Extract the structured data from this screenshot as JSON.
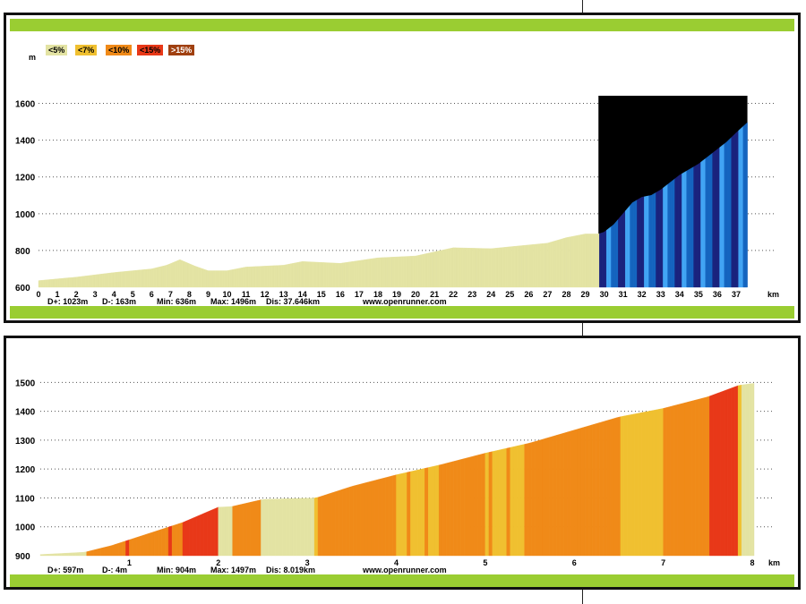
{
  "chart_data": [
    {
      "type": "area",
      "y_unit": "m",
      "x_unit": "km",
      "ylim": [
        600,
        1700
      ],
      "xlim": [
        0,
        38
      ],
      "y_ticks": [
        600,
        800,
        1000,
        1200,
        1400,
        1600
      ],
      "x_ticks": [
        "0",
        "1",
        "2",
        "3",
        "4",
        "5",
        "6",
        "7",
        "8",
        "9",
        "10",
        "11",
        "12",
        "13",
        "14",
        "15",
        "16",
        "17",
        "18",
        "19",
        "20",
        "21",
        "22",
        "23",
        "24",
        "25",
        "26",
        "27",
        "28",
        "29",
        "30",
        "31",
        "32",
        "33",
        "34",
        "35",
        "36",
        "37"
      ],
      "profile_km": [
        0,
        2,
        4,
        6,
        6.8,
        7.5,
        8.3,
        9,
        10,
        11,
        12,
        13,
        14,
        16,
        18,
        20,
        22,
        24,
        26,
        27,
        28,
        29,
        29.7,
        30,
        30.5,
        31,
        31.5,
        32,
        32.5,
        33,
        33.5,
        34,
        34.5,
        35,
        35.5,
        36,
        36.5,
        37,
        37.6
      ],
      "profile_m": [
        636,
        655,
        680,
        700,
        720,
        750,
        715,
        690,
        690,
        710,
        715,
        720,
        740,
        730,
        760,
        770,
        815,
        810,
        830,
        840,
        870,
        890,
        890,
        900,
        940,
        1000,
        1060,
        1090,
        1100,
        1130,
        1170,
        1210,
        1240,
        1270,
        1310,
        1350,
        1390,
        1440,
        1496
      ],
      "legend": [
        "<5%",
        "<7%",
        "<10%",
        "<15%",
        ">15%"
      ],
      "legend_colors": [
        "#e3e3a3",
        "#f0c030",
        "#f08a18",
        "#e83818",
        "#a04010"
      ],
      "highlight_range_km": [
        29.7,
        37.6
      ],
      "highlight_colors": [
        "#1a237e",
        "#1565c0",
        "#42a5f5"
      ],
      "stats": {
        "d_plus": "D+: 1023m",
        "d_minus": "D-: 163m",
        "min": "Min: 636m",
        "max": "Max: 1496m",
        "dist": "Dis: 37.646km"
      },
      "site": "www.openrunner.com"
    },
    {
      "type": "area",
      "y_unit": "",
      "x_unit": "km",
      "ylim": [
        900,
        1560
      ],
      "xlim": [
        0,
        8.05
      ],
      "y_ticks": [
        900,
        1000,
        1100,
        1200,
        1300,
        1400,
        1500
      ],
      "x_ticks": [
        "1",
        "2",
        "3",
        "4",
        "5",
        "6",
        "7",
        "8"
      ],
      "profile_km": [
        0,
        0.5,
        0.8,
        1.2,
        1.6,
        2.0,
        2.15,
        2.5,
        3.1,
        3.5,
        4.0,
        4.5,
        5.0,
        5.5,
        6.0,
        6.5,
        7.0,
        7.5,
        7.85,
        8.02
      ],
      "profile_m": [
        904,
        912,
        935,
        975,
        1015,
        1068,
        1070,
        1095,
        1100,
        1140,
        1180,
        1215,
        1255,
        1290,
        1335,
        1380,
        1410,
        1450,
        1490,
        1497
      ],
      "stats": {
        "d_plus": "D+: 597m",
        "d_minus": "D-: 4m",
        "min": "Min: 904m",
        "max": "Max: 1497m",
        "dist": "Dis: 8.019km"
      },
      "site": "www.openrunner.com"
    }
  ]
}
